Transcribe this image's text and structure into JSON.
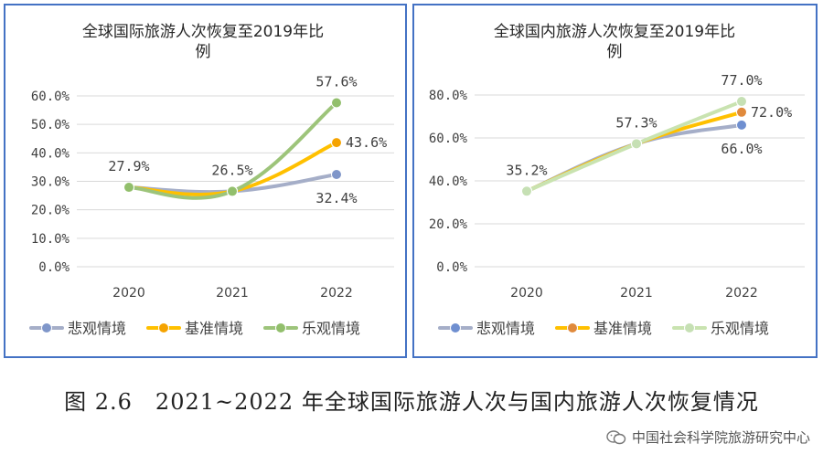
{
  "caption": "图 2.6　2021~2022 年全球国际旅游人次与国内旅游人次恢复情况",
  "watermark": {
    "text": "中国社会科学院旅游研究中心",
    "icon": "wechat-icon"
  },
  "chart_data": [
    {
      "type": "line",
      "title_lines": [
        "全球国际旅游人次恢复至2019年比",
        "例"
      ],
      "x": [
        "2020",
        "2021",
        "2022"
      ],
      "ylim": [
        0,
        60
      ],
      "yticks": [
        0,
        10,
        20,
        30,
        40,
        50,
        60
      ],
      "ytick_labels": [
        "0.0%",
        "10.0%",
        "20.0%",
        "30.0%",
        "40.0%",
        "50.0%",
        "60.0%"
      ],
      "grid": true,
      "legend_position": "bottom",
      "series": [
        {
          "name": "悲观情境",
          "values": [
            27.9,
            26.5,
            32.4
          ],
          "color": "#a5aec8",
          "marker_color": "#7f96c9"
        },
        {
          "name": "基准情境",
          "values": [
            27.9,
            26.5,
            43.6
          ],
          "color": "#ffc000",
          "marker_color": "#f5a300"
        },
        {
          "name": "乐观情境",
          "values": [
            27.9,
            26.5,
            57.6
          ],
          "color": "#9dc47a",
          "marker_color": "#92bf6c"
        }
      ],
      "data_labels": [
        {
          "text": "27.9%",
          "x": "2020",
          "value": 27.9,
          "pos": "above"
        },
        {
          "text": "26.5%",
          "x": "2021",
          "value": 26.5,
          "pos": "above"
        },
        {
          "text": "57.6%",
          "x": "2022",
          "value": 57.6,
          "pos": "above"
        },
        {
          "text": "43.6%",
          "x": "2022",
          "value": 43.6,
          "pos": "right"
        },
        {
          "text": "32.4%",
          "x": "2022",
          "value": 32.4,
          "pos": "below"
        }
      ]
    },
    {
      "type": "line",
      "title_lines": [
        "全球国内旅游人次恢复至2019年比",
        "例"
      ],
      "x": [
        "2020",
        "2021",
        "2022"
      ],
      "ylim": [
        0,
        80
      ],
      "yticks": [
        0,
        20,
        40,
        60,
        80
      ],
      "ytick_labels": [
        "0.0%",
        "20.0%",
        "40.0%",
        "60.0%",
        "80.0%"
      ],
      "grid": true,
      "legend_position": "bottom",
      "series": [
        {
          "name": "悲观情境",
          "values": [
            35.2,
            57.3,
            66.0
          ],
          "color": "#a5aec8",
          "marker_color": "#6f8fd0"
        },
        {
          "name": "基准情境",
          "values": [
            35.2,
            57.3,
            72.0
          ],
          "color": "#ffc000",
          "marker_color": "#e08a3c"
        },
        {
          "name": "乐观情境",
          "values": [
            35.2,
            57.3,
            77.0
          ],
          "color": "#c9e3b0",
          "marker_color": "#c6e0b4"
        }
      ],
      "data_labels": [
        {
          "text": "35.2%",
          "x": "2020",
          "value": 35.2,
          "pos": "above"
        },
        {
          "text": "57.3%",
          "x": "2021",
          "value": 57.3,
          "pos": "above"
        },
        {
          "text": "77.0%",
          "x": "2022",
          "value": 77.0,
          "pos": "above"
        },
        {
          "text": "72.0%",
          "x": "2022",
          "value": 72.0,
          "pos": "right"
        },
        {
          "text": "66.0%",
          "x": "2022",
          "value": 66.0,
          "pos": "below"
        }
      ]
    }
  ]
}
